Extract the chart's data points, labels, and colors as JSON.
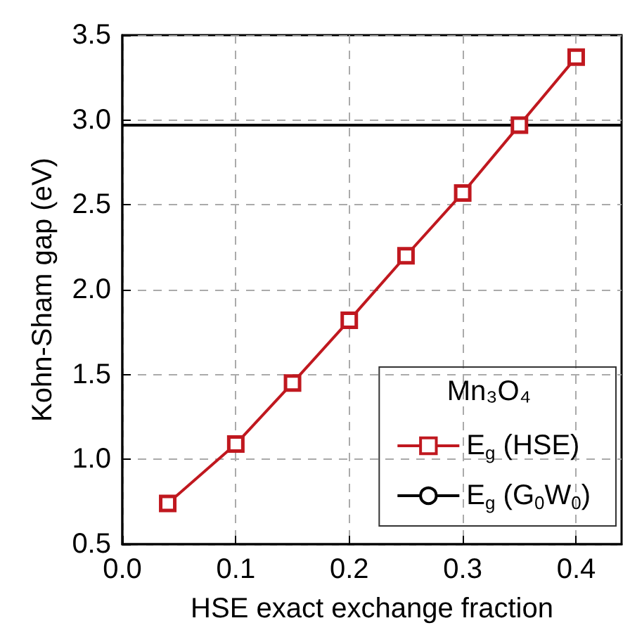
{
  "chart_data": {
    "type": "line",
    "xlabel": "HSE exact exchange fraction",
    "ylabel": "Kohn-Sham gap (eV)",
    "legend_title": "Mn₃O₄",
    "xlim": [
      0,
      0.44
    ],
    "xticks": [
      {
        "value": 0,
        "label": "0.0"
      },
      {
        "value": 0.1,
        "label": "0.1"
      },
      {
        "value": 0.2,
        "label": "0.2"
      },
      {
        "value": 0.3,
        "label": "0.3"
      },
      {
        "value": 0.4,
        "label": "0.4"
      }
    ],
    "ylim": [
      0.5,
      3.5
    ],
    "yticks": [
      {
        "value": 0.5,
        "label": "0.5"
      },
      {
        "value": 1,
        "label": "1.0"
      },
      {
        "value": 1.5,
        "label": "1.5"
      },
      {
        "value": 2,
        "label": "2.0"
      },
      {
        "value": 2.5,
        "label": "2.5"
      },
      {
        "value": 3,
        "label": "3.0"
      },
      {
        "value": 3.5,
        "label": "3.5"
      }
    ],
    "grid": true,
    "legend": "bottom right",
    "series": [
      {
        "name": "E$_{g}$ (HSE)",
        "color": "#c0181f",
        "marker": "square",
        "x": [
          0.04,
          0.1,
          0.15,
          0.2,
          0.25,
          0.3,
          0.35,
          0.4
        ],
        "values": [
          0.74,
          1.09,
          1.45,
          1.82,
          2.2,
          2.57,
          2.97,
          3.37
        ]
      },
      {
        "name": "E$_{g}$ (G$_{0}$W$_{0}$)",
        "color": "#000000",
        "marker": "none",
        "x": [
          0,
          0.44
        ],
        "values": [
          2.97,
          2.97
        ]
      }
    ]
  }
}
